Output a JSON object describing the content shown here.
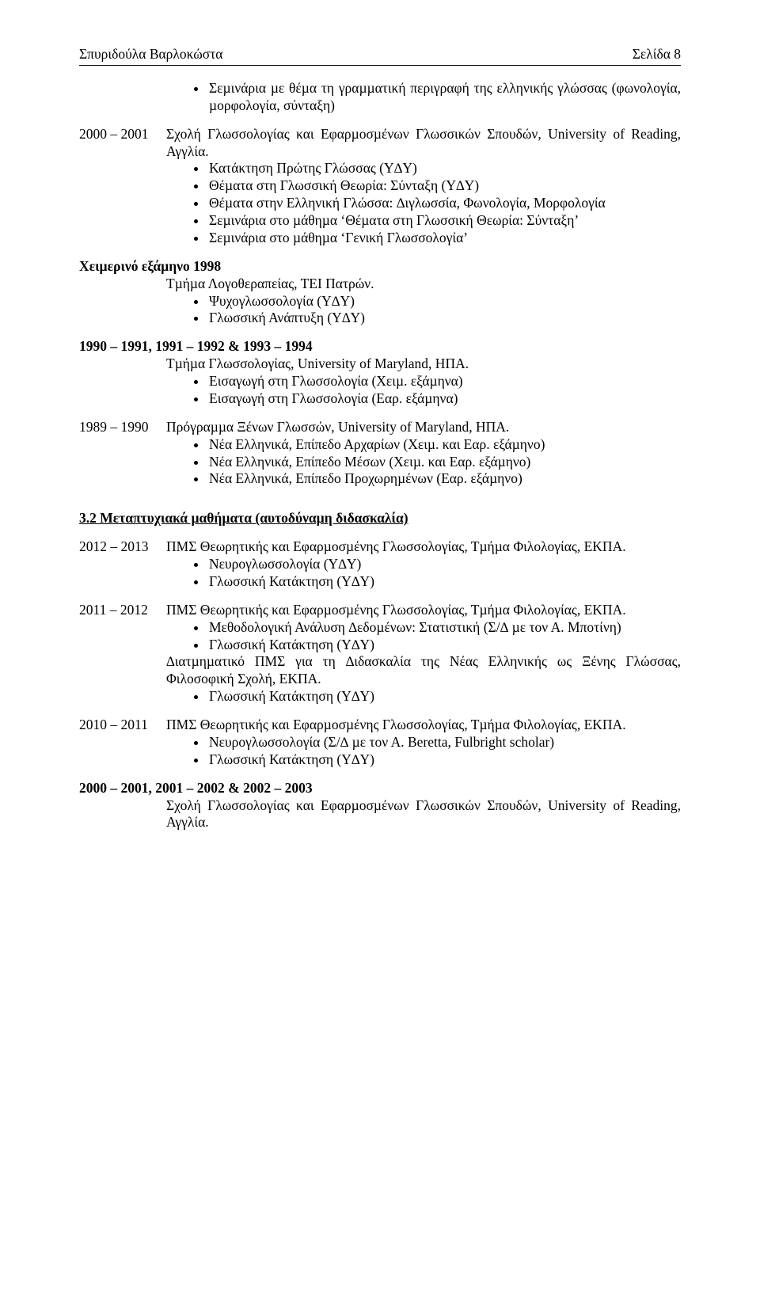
{
  "header": {
    "left": "Σπυριδούλα Βαρλοκώστα",
    "right": "Σελίδα 8"
  },
  "top": {
    "b1": "Σεµινάρια µε θέµα τη γραµµατική περιγραφή της ελληνικής γλώσσας (φωνολογία, µορφολογία, σύνταξη)"
  },
  "p2000": {
    "year": "2000 – 2001",
    "body": "Σχολή Γλωσσολογίας και Εφαρµοσµένων Γλωσσικών Σπουδών, University of Reading, Αγγλία.",
    "b1": "Κατάκτηση Πρώτης Γλώσσας (Υ∆Υ)",
    "b2": "Θέµατα στη Γλωσσική Θεωρία: Σύνταξη (Υ∆Υ)",
    "b3": "Θέµατα στην Ελληνική Γλώσσα: ∆ιγλωσσία, Φωνολογία, Μορφολογία",
    "b4": "Σεµινάρια στο µάθηµα ‘Θέµατα στη Γλωσσική Θεωρία: Σύνταξη’",
    "b5": "Σεµινάρια στο µάθηµα ‘Γενική Γλωσσολογία’"
  },
  "p1998": {
    "title": "Χειµερινό εξάµηνο 1998",
    "line": "Τµήµα Λογοθεραπείας, ΤΕΙ Πατρών.",
    "b1": "Ψυχογλωσσολογία (Υ∆Υ)",
    "b2": "Γλωσσική Ανάπτυξη (Υ∆Υ)"
  },
  "p1990": {
    "title": "1990 – 1991, 1991 – 1992 & 1993 – 1994",
    "line": "Τµήµα Γλωσσολογίας, University of Maryland, ΗΠΑ.",
    "b1": "Εισαγωγή στη Γλωσσολογία (Χειµ. εξάµηνα)",
    "b2": "Εισαγωγή στη Γλωσσολογία (Εαρ. εξάµηνα)"
  },
  "p1989": {
    "year": "1989 – 1990",
    "body": "Πρόγραµµα Ξένων Γλωσσών, University of Maryland, ΗΠΑ.",
    "b1": "Νέα Ελληνικά, Επίπεδο Αρχαρίων (Χειµ. και Εαρ. εξάµηνο)",
    "b2": "Νέα Ελληνικά, Επίπεδο Μέσων  (Χειµ. και Εαρ. εξάµηνο)",
    "b3": "Νέα Ελληνικά, Επίπεδο Προχωρηµένων (Εαρ. εξάµηνο)"
  },
  "sec32": {
    "title": "3.2 Μεταπτυχιακά µαθήµατα (αυτοδύναµη διδασκαλία)"
  },
  "g2012": {
    "year": "2012 – 2013",
    "body": "ΠΜΣ Θεωρητικής και Εφαρµοσµένης Γλωσσολογίας, Τµήµα Φιλολογίας, ΕΚΠΑ.",
    "b1": "Νευρογλωσσολογία (Υ∆Υ)",
    "b2": "Γλωσσική Κατάκτηση (Υ∆Υ)"
  },
  "g2011": {
    "year": "2011 – 2012",
    "body": "ΠΜΣ Θεωρητικής και Εφαρµοσµένης Γλωσσολογίας, Τµήµα Φιλολογίας, ΕΚΠΑ.",
    "b1": "Μεθοδολογική Ανάλυση ∆εδοµένων: Στατιστική (Σ/∆ µε τον Α. Μποτίνη)",
    "b2": "Γλωσσική Κατάκτηση (Υ∆Υ)",
    "mid": "∆ιατµηµατικό ΠΜΣ για τη ∆ιδασκαλία της Νέας Ελληνικής ως Ξένης Γλώσσας, Φιλοσοφική Σχολή, ΕΚΠΑ.",
    "b3": "Γλωσσική Κατάκτηση (Υ∆Υ)"
  },
  "g2010": {
    "year": "2010 – 2011",
    "body": "ΠΜΣ Θεωρητικής και Εφαρµοσµένης Γλωσσολογίας, Τµήµα Φιλολογίας, ΕΚΠΑ.",
    "b1": "Νευρογλωσσολογία (Σ/∆ µε τον Α. Beretta, Fulbright scholar)",
    "b2": "Γλωσσική Κατάκτηση (Υ∆Υ)"
  },
  "g2000": {
    "title": "2000 – 2001, 2001 – 2002 & 2002 – 2003",
    "body": "Σχολή Γλωσσολογίας και Εφαρµοσµένων Γλωσσικών Σπουδών, University of Reading, Αγγλία."
  }
}
